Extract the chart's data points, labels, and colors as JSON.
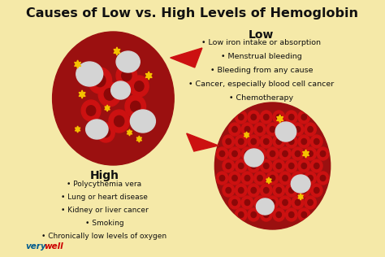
{
  "title": "Causes of Low vs. High Levels of Hemoglobin",
  "background_color": "#f5e9a8",
  "title_fontsize": 11.5,
  "low_label": "Low",
  "low_items": [
    "• Low iron intake or absorption",
    "• Menstrual bleeding",
    "• Bleeding from any cause",
    "• Cancer, especially blood cell cancer",
    "• Chemotherapy"
  ],
  "high_label": "High",
  "high_items": [
    "• Polycythemia vera",
    "• Lung or heart disease",
    "• Kidney or liver cancer",
    "• Smoking",
    "• Chronically low levels of oxygen"
  ],
  "circle_bg": "#9b1010",
  "rbc_outer": "#cc1111",
  "rbc_inner": "#8b0808",
  "white_cell": "#d4d4d4",
  "gold_star": "#f5c200",
  "text_color": "#111111",
  "verywell_blue": "#005b8e",
  "verywell_red": "#cc0000",
  "arrow_color": "#cc1111"
}
